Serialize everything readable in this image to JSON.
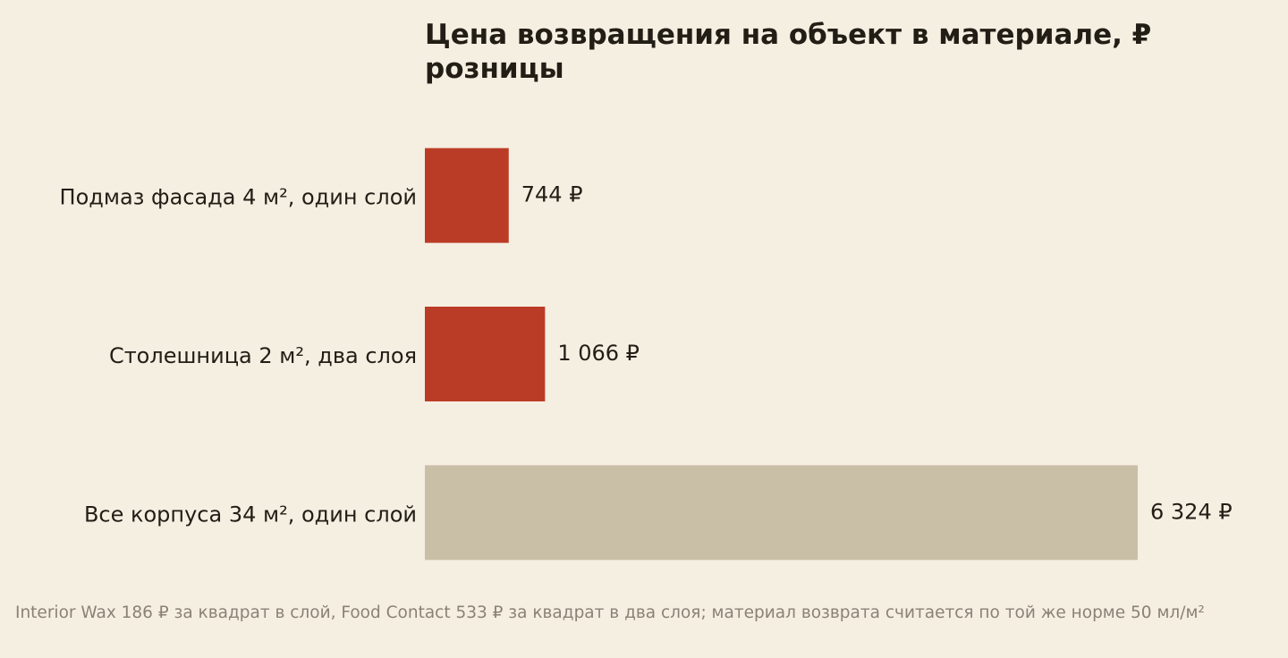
{
  "chart_data": {
    "type": "barh",
    "title": "Цена возвращения на объект в материале, ₽ розницы",
    "categories": [
      "Подмаз фасада 4 м², один слой",
      "Столешница 2 м², два слоя",
      "Все корпуса 34 м², один слой"
    ],
    "values": [
      744,
      1066,
      6324
    ],
    "value_labels": [
      "744 ₽",
      "1 066 ₽",
      "6 324 ₽"
    ],
    "colors": [
      "#bb3c26",
      "#bb3c26",
      "#c9bfa7"
    ],
    "note": "Interior Wax 186 ₽ за квадрат в слой, Food Contact 533 ₽ за квадрат в два слоя; материал возврата считается по той же норме 50 мл/м²"
  }
}
